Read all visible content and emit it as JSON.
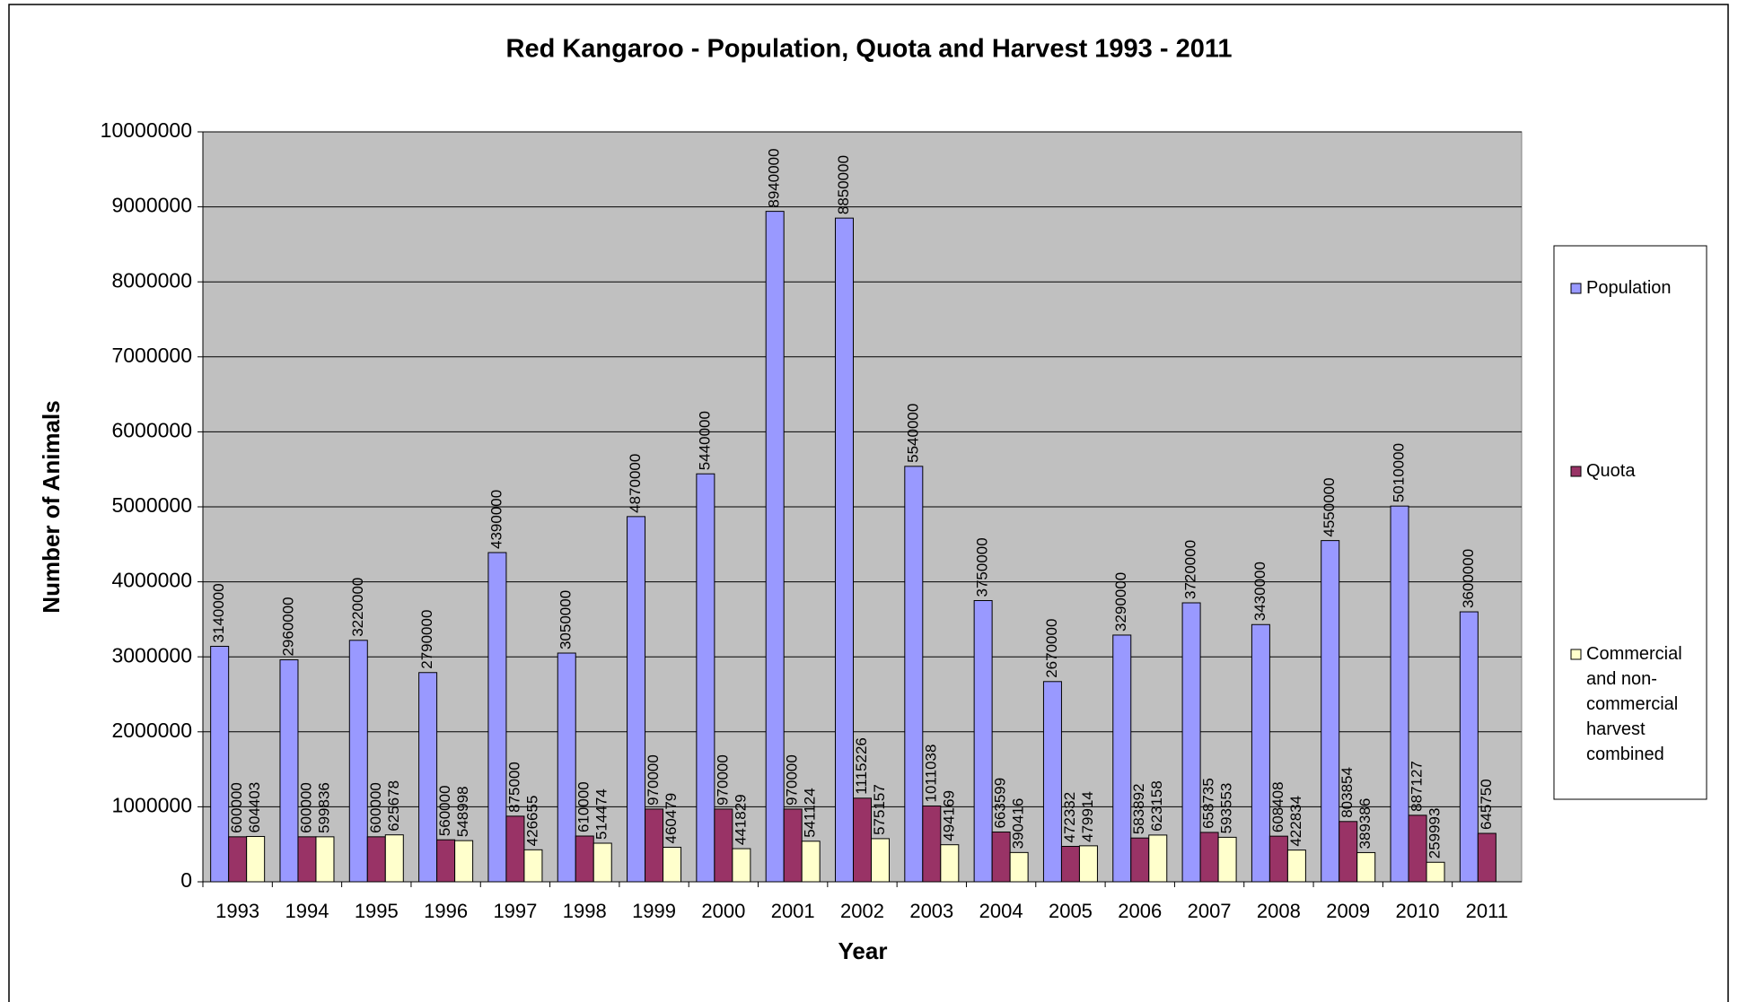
{
  "chart_data": {
    "type": "bar",
    "title": "Red Kangaroo - Population, Quota and Harvest 1993 - 2011",
    "x_label": "Year",
    "y_label": "Number of Animals",
    "categories": [
      "1993",
      "1994",
      "1995",
      "1996",
      "1997",
      "1998",
      "1999",
      "2000",
      "2001",
      "2002",
      "2003",
      "2004",
      "2005",
      "2006",
      "2007",
      "2008",
      "2009",
      "2010",
      "2011"
    ],
    "series": [
      {
        "name": "Population",
        "color": "#9999ff",
        "values": [
          3140000,
          2960000,
          3220000,
          2790000,
          4390000,
          3050000,
          4870000,
          5440000,
          8940000,
          8850000,
          5540000,
          3750000,
          2670000,
          3290000,
          3720000,
          3430000,
          4550000,
          5010000,
          3600000
        ]
      },
      {
        "name": "Quota",
        "color": "#993366",
        "values": [
          600000,
          600000,
          600000,
          560000,
          875000,
          610000,
          970000,
          970000,
          970000,
          1115226,
          1011038,
          663599,
          472332,
          583892,
          658735,
          608408,
          803854,
          887127,
          645750
        ]
      },
      {
        "name": "Commercial and non-commercial harvest combined",
        "color": "#ffffcc",
        "values": [
          604403,
          599836,
          625678,
          548998,
          426655,
          514474,
          460479,
          441829,
          541124,
          575157,
          494169,
          390416,
          479914,
          623158,
          593553,
          422834,
          389386,
          259993,
          null
        ]
      }
    ],
    "ylim": [
      0,
      10000000
    ],
    "yticks": [
      0,
      1000000,
      2000000,
      3000000,
      4000000,
      5000000,
      6000000,
      7000000,
      8000000,
      9000000,
      10000000
    ],
    "grid": true,
    "legend": "right"
  }
}
